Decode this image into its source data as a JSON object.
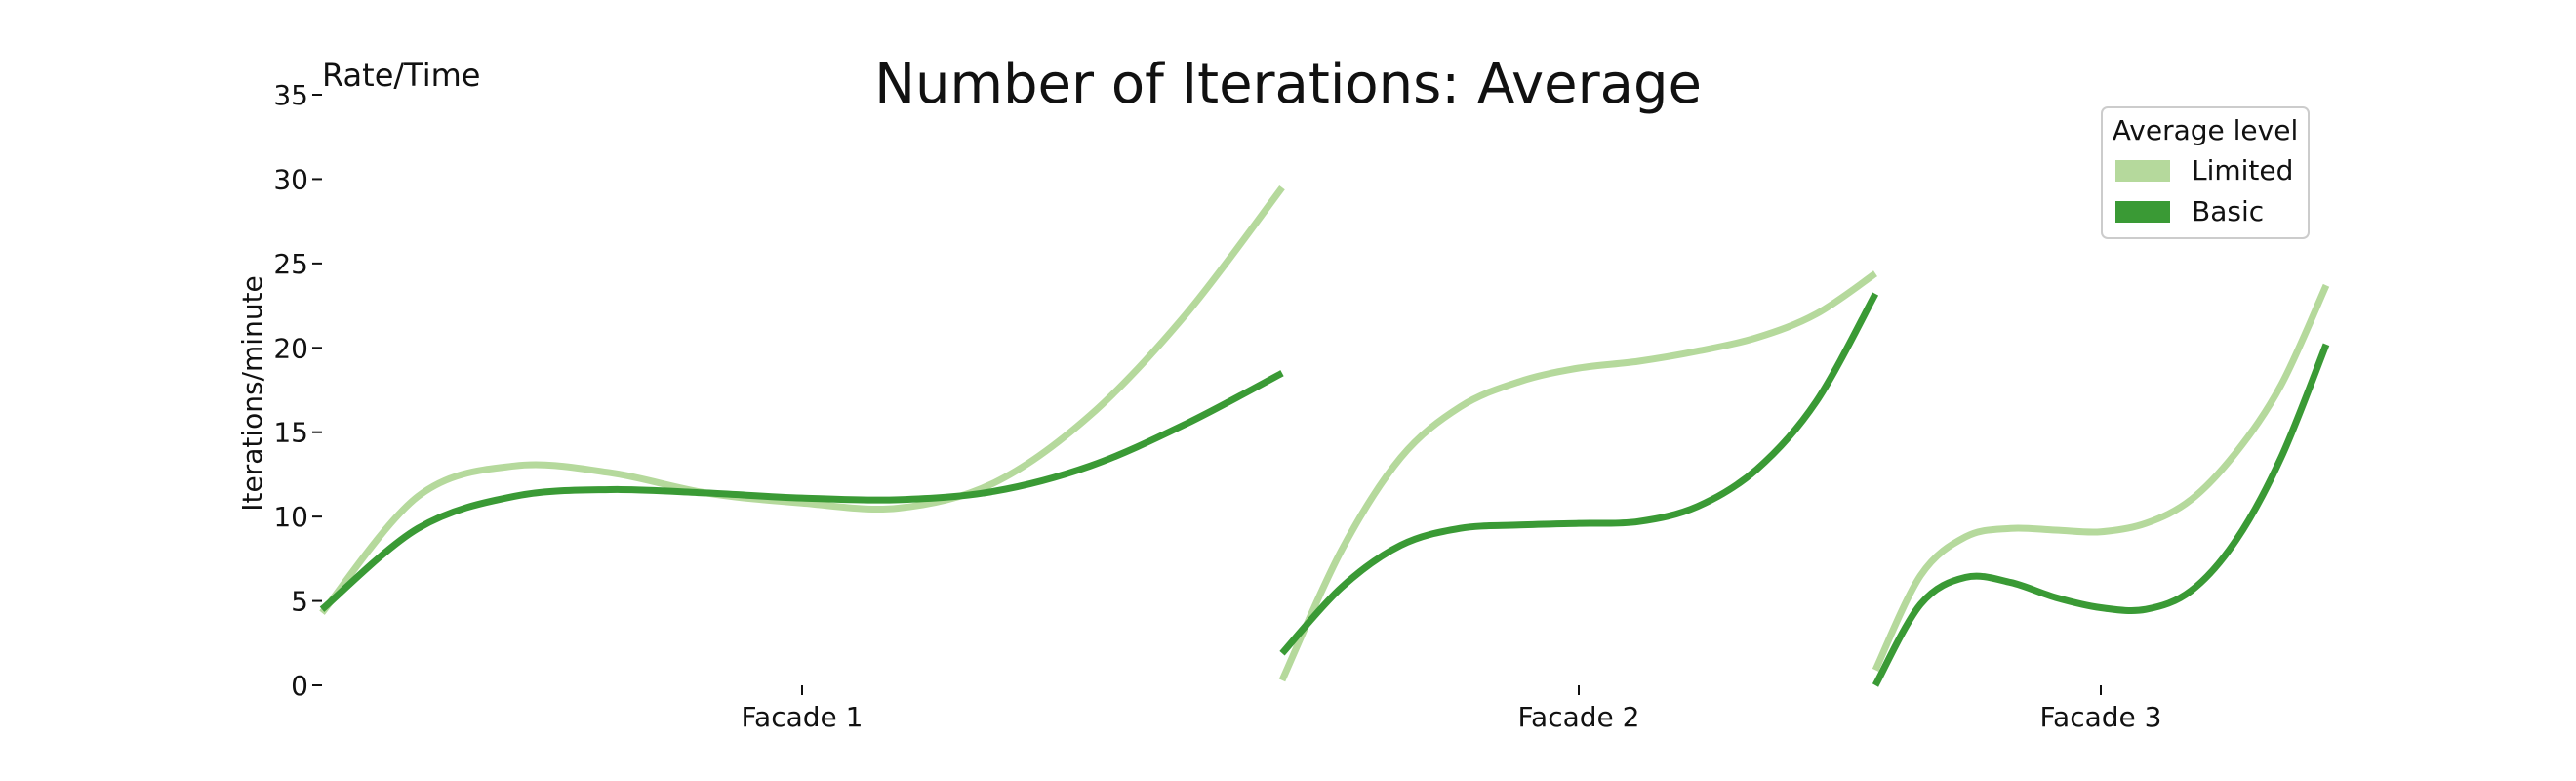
{
  "chart_data": {
    "type": "line",
    "title": "Number of Iterations: Average",
    "corner_label": "Rate/Time",
    "ylabel": "Iterations/minute",
    "xlabel": "",
    "ylim": [
      0,
      35
    ],
    "yticks": [
      0,
      5,
      10,
      15,
      20,
      25,
      30,
      35
    ],
    "grid": false,
    "legend": {
      "title": "Average level",
      "placement": "top-right",
      "entries": [
        {
          "name": "Limited",
          "color": "#b5d99c"
        },
        {
          "name": "Basic",
          "color": "#3a9a35"
        }
      ]
    },
    "panels": [
      {
        "label": "Facade 1",
        "series": [
          {
            "name": "Limited",
            "color": "#b5d99c",
            "x": [
              0,
              0.1,
              0.2,
              0.3,
              0.4,
              0.5,
              0.6,
              0.7,
              0.8,
              0.9,
              1.0
            ],
            "y": [
              4.3,
              11.2,
              13.0,
              12.6,
              11.4,
              10.8,
              10.5,
              12.0,
              16.0,
              22.0,
              29.5
            ]
          },
          {
            "name": "Basic",
            "color": "#3a9a35",
            "x": [
              0,
              0.1,
              0.2,
              0.3,
              0.4,
              0.5,
              0.6,
              0.7,
              0.8,
              0.9,
              1.0
            ],
            "y": [
              4.5,
              9.3,
              11.2,
              11.6,
              11.4,
              11.1,
              11.0,
              11.5,
              13.0,
              15.5,
              18.5
            ]
          }
        ]
      },
      {
        "label": "Facade 2",
        "series": [
          {
            "name": "Limited",
            "color": "#b5d99c",
            "x": [
              0,
              0.1,
              0.2,
              0.3,
              0.4,
              0.5,
              0.6,
              0.7,
              0.8,
              0.9,
              1.0
            ],
            "y": [
              0.3,
              8.0,
              13.5,
              16.5,
              18.0,
              18.8,
              19.2,
              19.8,
              20.6,
              22.0,
              24.4
            ]
          },
          {
            "name": "Basic",
            "color": "#3a9a35",
            "x": [
              0,
              0.1,
              0.2,
              0.3,
              0.4,
              0.5,
              0.6,
              0.7,
              0.8,
              0.9,
              1.0
            ],
            "y": [
              1.9,
              5.8,
              8.3,
              9.3,
              9.5,
              9.6,
              9.7,
              10.6,
              12.8,
              16.8,
              23.2
            ]
          }
        ]
      },
      {
        "label": "Facade 3",
        "series": [
          {
            "name": "Limited",
            "color": "#b5d99c",
            "x": [
              0,
              0.1,
              0.2,
              0.3,
              0.4,
              0.5,
              0.6,
              0.7,
              0.8,
              0.9,
              1.0
            ],
            "y": [
              0.9,
              6.5,
              8.8,
              9.3,
              9.2,
              9.1,
              9.6,
              11.0,
              13.8,
              17.8,
              23.7
            ]
          },
          {
            "name": "Basic",
            "color": "#3a9a35",
            "x": [
              0,
              0.1,
              0.2,
              0.3,
              0.4,
              0.5,
              0.6,
              0.7,
              0.8,
              0.9,
              1.0
            ],
            "y": [
              0.0,
              4.8,
              6.4,
              6.1,
              5.2,
              4.6,
              4.5,
              5.6,
              8.6,
              13.5,
              20.2
            ]
          }
        ]
      }
    ]
  }
}
